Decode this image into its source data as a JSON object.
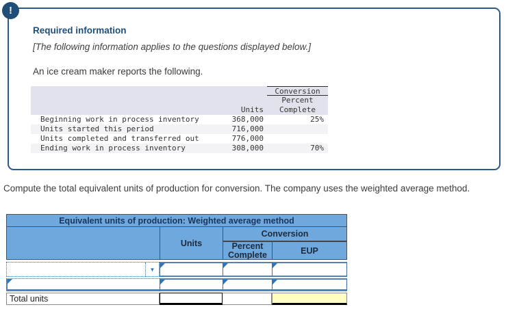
{
  "info_box": {
    "alert_glyph": "!",
    "title": "Required information",
    "note": "[The following information applies to the questions displayed below.]",
    "intro": "An ice cream maker reports the following."
  },
  "source_table": {
    "headers": {
      "conversion": "Conversion",
      "percent_line1": "Percent",
      "percent_line2": "Complete",
      "units": "Units"
    },
    "rows": [
      {
        "label": "Beginning work in process inventory",
        "units": "368,000",
        "percent": "25%"
      },
      {
        "label": "Units started this period",
        "units": "716,000",
        "percent": ""
      },
      {
        "label": "Units completed and transferred out",
        "units": "776,000",
        "percent": ""
      },
      {
        "label": "Ending work in process inventory",
        "units": "308,000",
        "percent": "70%"
      }
    ]
  },
  "question": {
    "text": "Compute the total equivalent units of production for conversion. The company uses the weighted average method."
  },
  "worksheet": {
    "title": "Equivalent units of production: Weighted average method",
    "headers": {
      "units": "Units",
      "conversion": "Conversion",
      "percent_line1": "Percent",
      "percent_line2": "Complete",
      "eup": "EUP"
    },
    "dropdown_arrow": "▼",
    "dropdown_value": "",
    "input_values": {
      "row1": {
        "units": "",
        "percent": "",
        "eup": ""
      },
      "row2": {
        "label": "",
        "units": "",
        "percent": "",
        "eup": ""
      }
    },
    "total_label": "Total units",
    "total_values": {
      "units": "",
      "percent": "",
      "eup": ""
    }
  },
  "colors": {
    "accent_navy": "#1f4e79",
    "panel_border": "#29598c",
    "header_blue": "#6fa8dc",
    "input_border_blue": "#4f81bd",
    "marker_blue": "#2e75b6",
    "source_header_bg": "#e1e3ec",
    "source_row_alt": "#f3f3f5",
    "total_eup_bg": "#ffffc2"
  }
}
